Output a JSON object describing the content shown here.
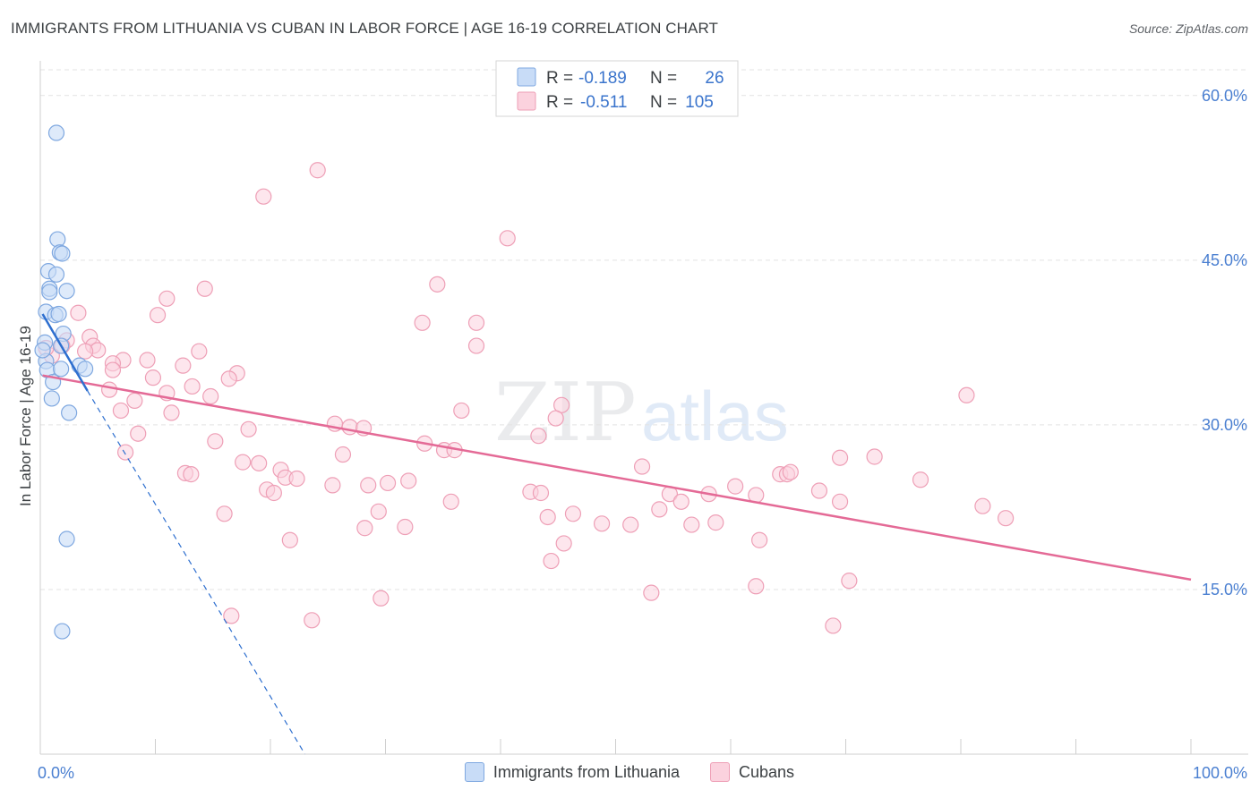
{
  "header": {
    "title": "IMMIGRANTS FROM LITHUANIA VS CUBAN IN LABOR FORCE | AGE 16-19 CORRELATION CHART",
    "source": "Source: ZipAtlas.com"
  },
  "watermark": {
    "zip": "ZIP",
    "atlas": "atlas"
  },
  "colors": {
    "blue_fill": "#c8dcf7",
    "blue_stroke": "#7fa8e0",
    "blue_line": "#2e6fcf",
    "pink_fill": "#fbd2de",
    "pink_stroke": "#ee9fb6",
    "pink_line": "#e46a96",
    "axis_text": "#4a7fd1",
    "grid": "#e3e3e3"
  },
  "legend_top": {
    "rows": [
      {
        "r_label": "R =",
        "r_value": "-0.189",
        "n_label": "N =",
        "n_value": "26"
      },
      {
        "r_label": "R =",
        "r_value": "-0.511",
        "n_label": "N =",
        "n_value": "105"
      }
    ]
  },
  "legend_bottom": {
    "series1": "Immigrants from Lithuania",
    "series2": "Cubans"
  },
  "chart_data": {
    "type": "scatter",
    "title": "IMMIGRANTS FROM LITHUANIA VS CUBAN IN LABOR FORCE | AGE 16-19 CORRELATION CHART",
    "xlabel": "",
    "ylabel": "In Labor Force | Age 16-19",
    "xlim": [
      0,
      100
    ],
    "ylim": [
      0,
      63
    ],
    "x_tick_labels": [
      "0.0%",
      "100.0%"
    ],
    "y_ticks": [
      15,
      30,
      45,
      60
    ],
    "y_tick_labels": [
      "15.0%",
      "30.0%",
      "45.0%",
      "60.0%"
    ],
    "grid": true,
    "series": [
      {
        "name": "Immigrants from Lithuania",
        "r": -0.189,
        "n": 26,
        "points": [
          [
            1.4,
            56.6
          ],
          [
            1.5,
            46.9
          ],
          [
            1.7,
            45.7
          ],
          [
            1.9,
            45.6
          ],
          [
            0.7,
            44.0
          ],
          [
            1.4,
            43.7
          ],
          [
            0.8,
            42.4
          ],
          [
            0.8,
            42.1
          ],
          [
            2.3,
            42.2
          ],
          [
            0.5,
            40.3
          ],
          [
            1.3,
            40.0
          ],
          [
            1.6,
            40.1
          ],
          [
            2.0,
            38.3
          ],
          [
            0.4,
            37.5
          ],
          [
            1.8,
            37.2
          ],
          [
            0.5,
            35.8
          ],
          [
            3.4,
            35.4
          ],
          [
            0.6,
            35.0
          ],
          [
            1.8,
            35.1
          ],
          [
            3.9,
            35.1
          ],
          [
            1.1,
            33.9
          ],
          [
            1.0,
            32.4
          ],
          [
            2.5,
            31.1
          ],
          [
            2.3,
            19.6
          ],
          [
            1.9,
            11.2
          ],
          [
            0.2,
            36.8
          ]
        ],
        "trend_solid": [
          [
            0.2,
            40.1
          ],
          [
            4.1,
            33.1
          ]
        ],
        "trend_dashed": [
          [
            4.1,
            33.1
          ],
          [
            23.0,
            0.0
          ]
        ]
      },
      {
        "name": "Cubans",
        "r": -0.511,
        "n": 105,
        "points": [
          [
            24.1,
            53.2
          ],
          [
            19.4,
            50.8
          ],
          [
            40.6,
            47.0
          ],
          [
            34.5,
            42.8
          ],
          [
            14.3,
            42.4
          ],
          [
            11.0,
            41.5
          ],
          [
            3.3,
            40.2
          ],
          [
            10.2,
            40.0
          ],
          [
            33.2,
            39.3
          ],
          [
            37.9,
            39.3
          ],
          [
            4.3,
            38.0
          ],
          [
            2.3,
            37.7
          ],
          [
            1.9,
            37.2
          ],
          [
            4.6,
            37.2
          ],
          [
            37.9,
            37.2
          ],
          [
            5.0,
            36.8
          ],
          [
            13.8,
            36.7
          ],
          [
            1.0,
            36.3
          ],
          [
            7.2,
            35.9
          ],
          [
            9.3,
            35.9
          ],
          [
            12.4,
            35.4
          ],
          [
            6.3,
            35.6
          ],
          [
            6.3,
            35.0
          ],
          [
            17.1,
            34.7
          ],
          [
            9.8,
            34.3
          ],
          [
            16.4,
            34.2
          ],
          [
            13.2,
            33.5
          ],
          [
            6.0,
            33.2
          ],
          [
            11.0,
            32.9
          ],
          [
            14.8,
            32.6
          ],
          [
            8.2,
            32.2
          ],
          [
            45.3,
            31.8
          ],
          [
            36.6,
            31.3
          ],
          [
            7.0,
            31.3
          ],
          [
            11.4,
            31.1
          ],
          [
            80.5,
            32.7
          ],
          [
            44.8,
            30.6
          ],
          [
            25.6,
            30.1
          ],
          [
            26.9,
            29.8
          ],
          [
            28.1,
            29.7
          ],
          [
            18.1,
            29.6
          ],
          [
            8.5,
            29.2
          ],
          [
            43.3,
            29.0
          ],
          [
            15.2,
            28.5
          ],
          [
            33.4,
            28.3
          ],
          [
            35.1,
            27.7
          ],
          [
            36.0,
            27.7
          ],
          [
            7.4,
            27.5
          ],
          [
            26.3,
            27.3
          ],
          [
            69.5,
            27.0
          ],
          [
            72.5,
            27.1
          ],
          [
            17.6,
            26.6
          ],
          [
            19.0,
            26.5
          ],
          [
            52.3,
            26.2
          ],
          [
            20.9,
            25.9
          ],
          [
            12.6,
            25.6
          ],
          [
            13.1,
            25.5
          ],
          [
            64.3,
            25.5
          ],
          [
            64.9,
            25.5
          ],
          [
            65.2,
            25.7
          ],
          [
            21.3,
            25.2
          ],
          [
            22.3,
            25.1
          ],
          [
            32.0,
            24.9
          ],
          [
            30.2,
            24.7
          ],
          [
            28.5,
            24.5
          ],
          [
            25.4,
            24.5
          ],
          [
            76.5,
            25.0
          ],
          [
            60.4,
            24.4
          ],
          [
            19.7,
            24.1
          ],
          [
            20.3,
            23.8
          ],
          [
            42.6,
            23.9
          ],
          [
            43.5,
            23.8
          ],
          [
            54.7,
            23.7
          ],
          [
            58.1,
            23.7
          ],
          [
            62.2,
            23.6
          ],
          [
            67.7,
            24.0
          ],
          [
            35.7,
            23.0
          ],
          [
            55.7,
            23.0
          ],
          [
            69.5,
            23.0
          ],
          [
            53.8,
            22.3
          ],
          [
            29.4,
            22.1
          ],
          [
            46.3,
            21.9
          ],
          [
            16.0,
            21.9
          ],
          [
            81.9,
            22.6
          ],
          [
            83.9,
            21.5
          ],
          [
            44.1,
            21.6
          ],
          [
            48.8,
            21.0
          ],
          [
            51.3,
            20.9
          ],
          [
            56.6,
            20.9
          ],
          [
            58.7,
            21.1
          ],
          [
            28.2,
            20.6
          ],
          [
            31.7,
            20.7
          ],
          [
            21.7,
            19.5
          ],
          [
            45.5,
            19.2
          ],
          [
            62.5,
            19.5
          ],
          [
            44.4,
            17.6
          ],
          [
            70.3,
            15.8
          ],
          [
            62.2,
            15.3
          ],
          [
            53.1,
            14.7
          ],
          [
            29.6,
            14.2
          ],
          [
            16.6,
            12.6
          ],
          [
            23.6,
            12.2
          ],
          [
            68.9,
            11.7
          ],
          [
            0.5,
            37.0
          ],
          [
            3.9,
            36.7
          ]
        ],
        "trend_solid": [
          [
            0.2,
            34.5
          ],
          [
            100.0,
            15.9
          ]
        ]
      }
    ]
  }
}
